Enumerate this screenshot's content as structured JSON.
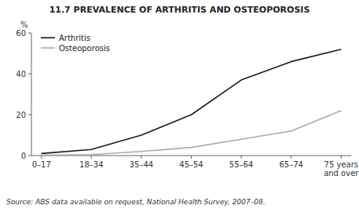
{
  "chart_data": {
    "type": "line",
    "title": "11.7   PREVALENCE OF ARTHRITIS AND OSTEOPOROSIS",
    "ylabel": "%",
    "source": "Source: ABS data available on request, National Health Survey, 2007–08.",
    "categories": [
      "0–17",
      "18–34",
      "35–44",
      "45–54",
      "55–64",
      "65–74",
      "75 years\nand over"
    ],
    "series": [
      {
        "name": "Arthritis",
        "color": "#1a1a1a",
        "values": [
          1.0,
          3.0,
          10.0,
          20.0,
          37.0,
          46.0,
          52.0
        ]
      },
      {
        "name": "Osteoporosis",
        "color": "#aaaaaa",
        "values": [
          0.2,
          0.5,
          2.0,
          4.0,
          8.0,
          12.0,
          22.0
        ]
      }
    ],
    "ylim": [
      0,
      60
    ],
    "yticks": [
      0,
      20,
      40,
      60
    ],
    "grid": false,
    "legend": "upper left"
  }
}
